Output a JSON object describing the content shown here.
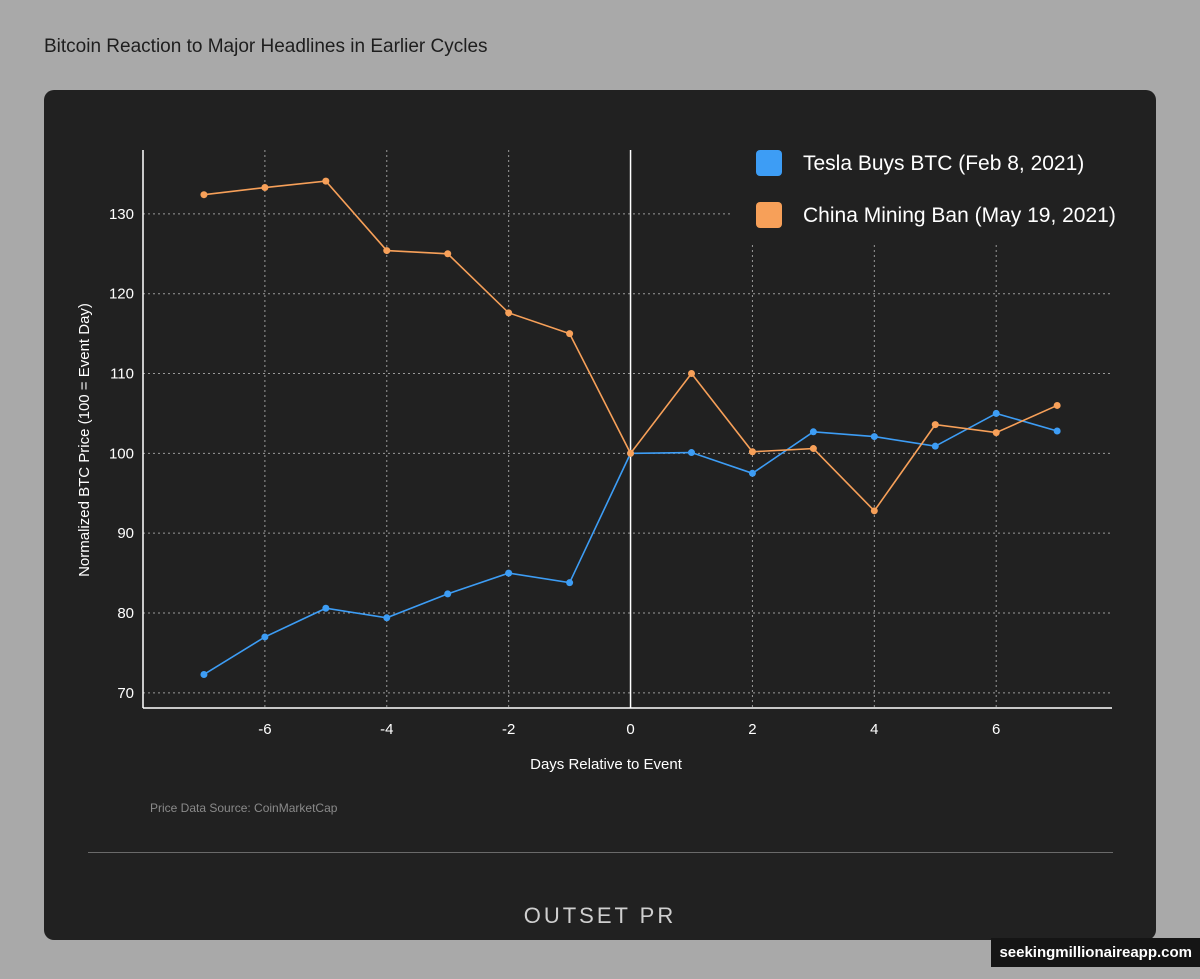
{
  "page_title": "Bitcoin Reaction to Major Headlines in Earlier Cycles",
  "source": "Price Data Source: CoinMarketCap",
  "logo": "OUTSET PR",
  "watermark": "seekingmillionaireapp.com",
  "chart_data": {
    "type": "line",
    "xlabel": "Days Relative to Event",
    "ylabel": "Normalized BTC Price (100 = Event Day)",
    "x": [
      -7,
      -6,
      -5,
      -4,
      -3,
      -2,
      -1,
      0,
      1,
      2,
      3,
      4,
      5,
      6,
      7
    ],
    "xticks": [
      -6,
      -4,
      -2,
      0,
      2,
      4,
      6
    ],
    "yticks": [
      70,
      80,
      90,
      100,
      110,
      120,
      130
    ],
    "xlim": [
      -8,
      7.9
    ],
    "ylim": [
      68.1,
      138
    ],
    "grid": true,
    "legend": "top-right",
    "series": [
      {
        "name": "Tesla Buys BTC (Feb 8, 2021)",
        "color": "#3d9df5",
        "values": [
          72.3,
          77.0,
          80.6,
          79.4,
          82.4,
          85.0,
          83.8,
          100,
          100.1,
          97.5,
          102.7,
          102.1,
          100.9,
          105.0,
          102.8
        ]
      },
      {
        "name": "China Mining Ban (May 19, 2021)",
        "color": "#f7a059",
        "values": [
          132.4,
          133.3,
          134.1,
          125.4,
          125.0,
          117.6,
          115.0,
          100,
          110.0,
          100.2,
          100.6,
          92.8,
          103.6,
          102.6,
          106.0
        ]
      }
    ]
  }
}
